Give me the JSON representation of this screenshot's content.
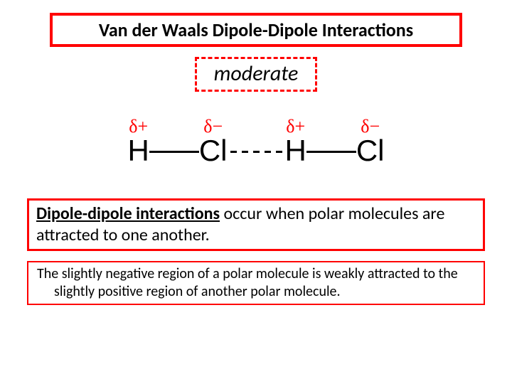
{
  "title": "Van der Waals Dipole-Dipole Interactions",
  "strength_label": "moderate",
  "molecule": {
    "atoms": [
      {
        "charge": "δ+",
        "element": "H"
      },
      {
        "charge": "δ−",
        "element": "Cl"
      },
      {
        "charge": "δ+",
        "element": "H"
      },
      {
        "charge": "δ−",
        "element": "Cl"
      }
    ],
    "bond_dashes": 5,
    "charge_color": "#ff0000",
    "atom_color": "#000000",
    "bond_color": "#000000"
  },
  "definition": {
    "term": "Dipole-dipole interactions",
    "rest": " occur when polar molecules are attracted to one another."
  },
  "explanation": "The slightly negative region of a polar molecule is weakly attracted to the slightly positive region of another polar molecule.",
  "colors": {
    "accent": "#ff0000",
    "text": "#000000",
    "background": "#ffffff"
  }
}
